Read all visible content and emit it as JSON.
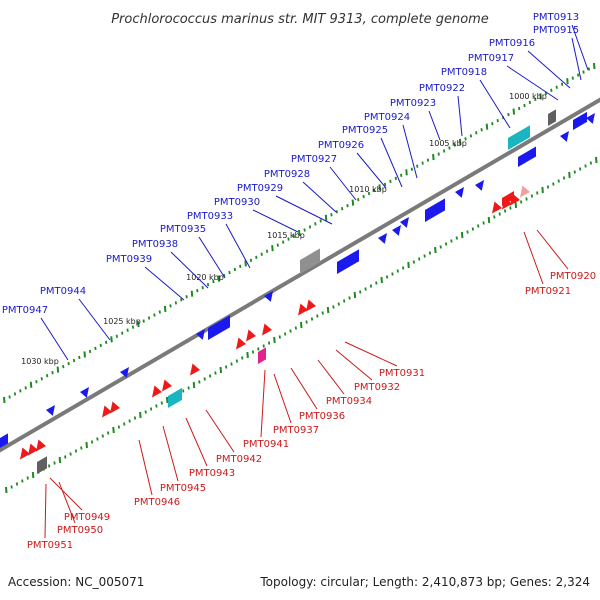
{
  "title": "Prochlorococcus marinus str. MIT 9313, complete genome",
  "footer": {
    "accession": "Accession: NC_005071",
    "summary": "Topology: circular; Length: 2,410,873 bp; Genes: 2,324"
  },
  "colors": {
    "forward_gene": "#1a1aee",
    "reverse_gene": "#ee1a1a",
    "forward_label": "#1a1acc",
    "reverse_label": "#cc1a1a",
    "axis": "#7a7a7a",
    "ruler_dots": "#1f8a1f",
    "rna_teal": "#19b5c0",
    "rna_magenta": "#e0248c",
    "rna_gray": "#909090",
    "pale_red": "#f4a0a0"
  },
  "scale_ticks": [
    "1000 kbp",
    "1005 kbp",
    "1010 kbp",
    "1015 kbp",
    "1020 kbp",
    "1025 kbp",
    "1030 kbp"
  ],
  "forward_genes": [
    "PMT0913",
    "PMT0915",
    "PMT0916",
    "PMT0917",
    "PMT0918",
    "PMT0922",
    "PMT0923",
    "PMT0924",
    "PMT0925",
    "PMT0926",
    "PMT0927",
    "PMT0928",
    "PMT0929",
    "PMT0930",
    "PMT0933",
    "PMT0935",
    "PMT0938",
    "PMT0939",
    "PMT0944",
    "PMT0947"
  ],
  "reverse_genes": [
    "PMT0920",
    "PMT0921",
    "PMT0931",
    "PMT0932",
    "PMT0934",
    "PMT0936",
    "PMT0937",
    "PMT0941",
    "PMT0942",
    "PMT0943",
    "PMT0945",
    "PMT0946",
    "PMT0949",
    "PMT0950",
    "PMT0951"
  ]
}
